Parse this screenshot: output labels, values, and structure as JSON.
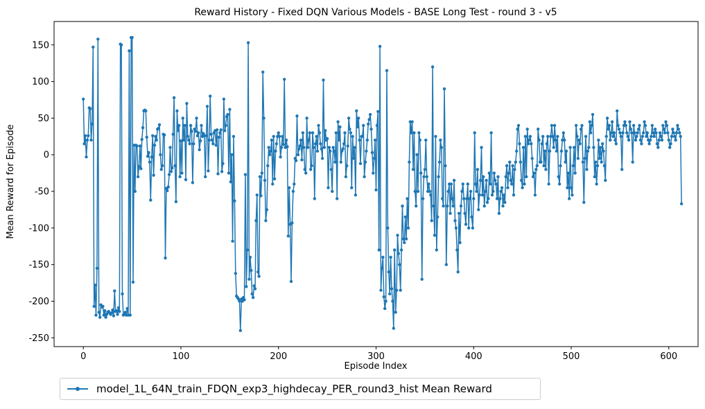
{
  "chart_data": {
    "type": "line",
    "title": "Reward History - Fixed DQN Various Models - BASE Long Test - round 3 - v5",
    "xlabel": "Episode Index",
    "ylabel": "Mean Reward for Episode",
    "xlim": [
      -30,
      630
    ],
    "ylim": [
      -262,
      182
    ],
    "xticks": [
      0,
      100,
      200,
      300,
      400,
      500,
      600
    ],
    "yticks": [
      -250,
      -200,
      -150,
      -100,
      -50,
      0,
      50,
      100,
      150
    ],
    "grid": false,
    "legend_position": "below-left",
    "colors": {
      "series": "#1f77b4"
    },
    "series": [
      {
        "name": "model_1L_64N_train_FDQN_exp3_highdecay_PER_round3_hist Mean Reward",
        "x_step": 1,
        "values": [
          76,
          15,
          26,
          -3,
          20,
          26,
          64,
          63,
          20,
          42,
          147,
          -207,
          -178,
          -219,
          -155,
          158,
          -215,
          -222,
          -205,
          -208,
          -207,
          -219,
          -213,
          -222,
          -218,
          -215,
          -214,
          -216,
          -218,
          -216,
          -212,
          -220,
          -186,
          -214,
          -213,
          -218,
          -209,
          -214,
          151,
          150,
          -190,
          -219,
          -218,
          -215,
          -219,
          -210,
          -219,
          142,
          -219,
          160,
          160,
          -174,
          13,
          -50,
          13,
          12,
          -30,
          -16,
          12,
          -19,
          21,
          37,
          60,
          61,
          60,
          24,
          -2,
          3,
          -10,
          -62,
          -3,
          26,
          -28,
          13,
          25,
          20,
          35,
          36,
          41,
          0,
          -20,
          -15,
          28,
          27,
          -141,
          -46,
          -49,
          -44,
          -27,
          10,
          -23,
          -18,
          28,
          78,
          -15,
          -64,
          60,
          33,
          40,
          -30,
          19,
          -25,
          50,
          20,
          40,
          -34,
          70,
          25,
          20,
          15,
          40,
          32,
          -38,
          15,
          35,
          32,
          50,
          26,
          30,
          7,
          19,
          40,
          25,
          29,
          26,
          -30,
          26,
          66,
          -22,
          20,
          80,
          28,
          20,
          15,
          30,
          33,
          13,
          34,
          -26,
          24,
          30,
          34,
          -23,
          -12,
          76,
          33,
          40,
          52,
          55,
          -25,
          62,
          -37,
          0,
          -118,
          25,
          -63,
          -162,
          -193,
          -195,
          -197,
          -200,
          -240,
          -197,
          -200,
          -195,
          -198,
          -27,
          -180,
          -130,
          153,
          -170,
          -140,
          -158,
          -190,
          -195,
          -179,
          -183,
          -90,
          -55,
          -160,
          -166,
          -30,
          -56,
          -25,
          113,
          50,
          -35,
          -90,
          -75,
          -15,
          10,
          0,
          5,
          20,
          -40,
          25,
          -33,
          5,
          15,
          25,
          30,
          25,
          -3,
          10,
          25,
          14,
          103,
          10,
          20,
          11,
          -111,
          -45,
          -95,
          -173,
          -93,
          -50,
          -40,
          -5,
          -8,
          53,
          0,
          8,
          12,
          20,
          -7,
          30,
          10,
          -20,
          -25,
          50,
          10,
          20,
          30,
          -20,
          -15,
          30,
          10,
          -60,
          15,
          25,
          5,
          40,
          30,
          15,
          8,
          -5,
          102,
          10,
          33,
          20,
          22,
          -45,
          10,
          5,
          -20,
          -50,
          10,
          5,
          -10,
          30,
          -60,
          45,
          20,
          38,
          -10,
          5,
          8,
          15,
          30,
          -30,
          -15,
          12,
          50,
          35,
          30,
          -45,
          25,
          -5,
          10,
          -55,
          60,
          38,
          50,
          20,
          -12,
          25,
          25,
          40,
          -30,
          -10,
          5,
          20,
          42,
          48,
          55,
          35,
          3,
          -25,
          -5,
          20,
          -48,
          40,
          59,
          -130,
          148,
          -185,
          -155,
          -140,
          -194,
          -210,
          -200,
          115,
          -100,
          -160,
          -190,
          -140,
          -183,
          -200,
          -237,
          -130,
          -215,
          -185,
          -110,
          -135,
          -150,
          -185,
          -130,
          -70,
          -115,
          -120,
          -85,
          -115,
          -60,
          -100,
          -10,
          45,
          30,
          45,
          -20,
          30,
          -50,
          -70,
          0,
          -50,
          30,
          20,
          -25,
          -170,
          -60,
          -30,
          -20,
          20,
          -30,
          -50,
          -40,
          -50,
          -55,
          -90,
          120,
          -70,
          -110,
          25,
          -130,
          -85,
          -30,
          -10,
          20,
          10,
          -60,
          -70,
          90,
          -15,
          -150,
          -70,
          -50,
          -40,
          -80,
          -40,
          -60,
          -70,
          -35,
          -90,
          -100,
          -130,
          -160,
          -80,
          -120,
          -70,
          -50,
          -40,
          -60,
          -80,
          -95,
          -60,
          -40,
          -100,
          -60,
          -50,
          -85,
          -100,
          -60,
          30,
          -40,
          -50,
          -20,
          -75,
          -55,
          -35,
          10,
          -55,
          -30,
          -70,
          -50,
          -35,
          -65,
          -60,
          -25,
          -40,
          30,
          -55,
          -50,
          -25,
          -35,
          -40,
          -60,
          -30,
          -80,
          -60,
          -50,
          -45,
          -70,
          -55,
          -65,
          -30,
          -15,
          -45,
          -25,
          -10,
          -35,
          -40,
          -15,
          -55,
          -20,
          -10,
          5,
          35,
          40,
          15,
          -10,
          -35,
          -45,
          10,
          -40,
          25,
          -30,
          35,
          15,
          20,
          25,
          15,
          -5,
          -30,
          -25,
          -55,
          -20,
          -15,
          35,
          20,
          -10,
          -10,
          15,
          25,
          -15,
          5,
          -20,
          15,
          25,
          -40,
          5,
          25,
          40,
          25,
          10,
          40,
          20,
          5,
          25,
          -30,
          -40,
          -15,
          5,
          20,
          30,
          20,
          -10,
          5,
          -45,
          -25,
          -60,
          10,
          -45,
          -55,
          -15,
          10,
          -25,
          40,
          25,
          -5,
          20,
          15,
          35,
          40,
          -10,
          -65,
          -5,
          25,
          -20,
          5,
          10,
          45,
          30,
          40,
          55,
          10,
          -30,
          -10,
          -40,
          -15,
          20,
          -5,
          10,
          -10,
          15,
          5,
          -15,
          -35,
          25,
          50,
          35,
          40,
          20,
          30,
          45,
          25,
          30,
          20,
          15,
          60,
          40,
          35,
          30,
          25,
          -20,
          30,
          40,
          45,
          40,
          30,
          25,
          20,
          45,
          35,
          30,
          -10,
          40,
          30,
          20,
          25,
          30,
          35,
          40,
          20,
          15,
          25,
          30,
          45,
          40,
          25,
          30,
          20,
          15,
          20,
          25,
          40,
          30,
          25,
          35,
          30,
          15,
          10,
          20,
          30,
          25,
          20,
          40,
          35,
          30,
          45,
          40,
          30,
          20,
          10,
          15,
          25,
          35,
          30,
          25,
          20,
          30,
          40,
          35,
          30,
          25,
          -67
        ]
      }
    ]
  },
  "legend": {
    "label": "model_1L_64N_train_FDQN_exp3_highdecay_PER_round3_hist Mean Reward"
  }
}
